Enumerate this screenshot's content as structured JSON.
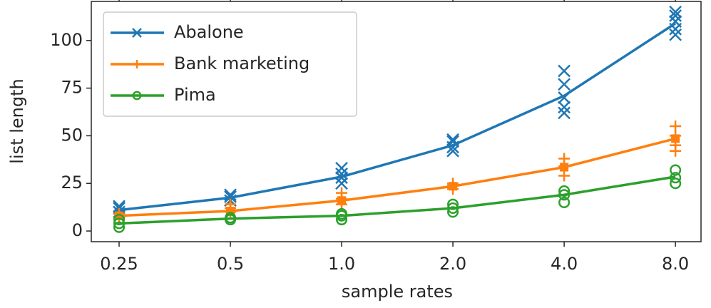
{
  "chart_data": {
    "type": "line",
    "x_label": "sample rates",
    "y_label": "list length",
    "categories": [
      "0.25",
      "0.5",
      "1.0",
      "2.0",
      "4.0",
      "8.0"
    ],
    "ylim": [
      -5.6,
      120.5
    ],
    "yticks": [
      0,
      25,
      50,
      75,
      100,
      125
    ],
    "legend": "upper left",
    "series": [
      {
        "name": "Abalone",
        "color": "#1f77b4",
        "marker": "x",
        "values": [
          11,
          17.5,
          28.5,
          45,
          71,
          109
        ],
        "trials": [
          [
            10,
            12,
            13
          ],
          [
            16,
            18,
            19
          ],
          [
            25,
            28,
            30,
            33
          ],
          [
            42,
            44,
            47,
            48
          ],
          [
            62,
            65,
            70,
            77,
            84
          ],
          [
            103,
            106,
            110,
            113,
            115
          ]
        ]
      },
      {
        "name": "Bank marketing",
        "color": "#ff7f0e",
        "marker": "+",
        "values": [
          8,
          10.5,
          16,
          23.5,
          33.5,
          48.5
        ],
        "trials": [
          [
            7,
            9
          ],
          [
            10,
            12,
            14
          ],
          [
            14,
            17,
            20
          ],
          [
            22,
            24,
            25
          ],
          [
            29,
            34,
            38
          ],
          [
            42,
            45,
            50,
            55
          ]
        ]
      },
      {
        "name": "Pima",
        "color": "#2ca02c",
        "marker": "o",
        "values": [
          4,
          6.5,
          8,
          12,
          19,
          28.5
        ],
        "trials": [
          [
            2,
            4,
            6
          ],
          [
            6,
            7
          ],
          [
            6,
            8,
            9
          ],
          [
            10,
            12,
            14
          ],
          [
            15,
            19,
            21
          ],
          [
            25,
            28,
            32
          ]
        ]
      }
    ]
  }
}
